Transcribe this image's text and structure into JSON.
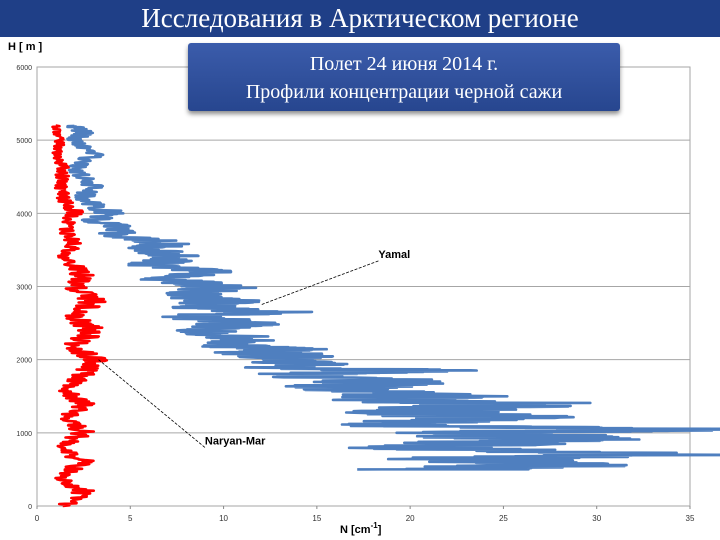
{
  "header": {
    "title": "Исследования в Арктическом регионе"
  },
  "callout": {
    "line1": "Полет 24 июня 2014 г.",
    "line2": "Профили концентрации черной сажи"
  },
  "chart_data": {
    "type": "line",
    "ylabel": "H [ m ]",
    "xlabel_base": "N [cm",
    "xlabel_exp": "-1",
    "xlabel_close": "]",
    "xlim": [
      0,
      35
    ],
    "ylim": [
      0,
      6000
    ],
    "x_ticks": [
      "0",
      "5",
      "10",
      "15",
      "20",
      "25",
      "30",
      "35"
    ],
    "y_ticks": [
      "0",
      "1000",
      "2000",
      "3000",
      "4000",
      "5000",
      "6000"
    ],
    "grid": "horizontal",
    "colors": {
      "Yamal": "#4f7fbf",
      "Naryan-Mar": "#ff0000"
    },
    "series": [
      {
        "name": "Yamal",
        "points": [
          [
            22,
            500
          ],
          [
            27,
            550
          ],
          [
            23,
            650
          ],
          [
            32,
            700
          ],
          [
            20,
            800
          ],
          [
            28,
            900
          ],
          [
            24,
            1000
          ],
          [
            33,
            1050
          ],
          [
            18,
            1100
          ],
          [
            25,
            1200
          ],
          [
            20,
            1300
          ],
          [
            26,
            1400
          ],
          [
            17,
            1450
          ],
          [
            21,
            1500
          ],
          [
            16,
            1600
          ],
          [
            19,
            1700
          ],
          [
            14,
            1800
          ],
          [
            20,
            1850
          ],
          [
            13,
            1900
          ],
          [
            15,
            2000
          ],
          [
            12,
            2100
          ],
          [
            13,
            2150
          ],
          [
            10,
            2200
          ],
          [
            11,
            2300
          ],
          [
            9,
            2400
          ],
          [
            11,
            2500
          ],
          [
            8,
            2600
          ],
          [
            13,
            2650
          ],
          [
            9,
            2700
          ],
          [
            10,
            2800
          ],
          [
            8,
            2900
          ],
          [
            10,
            3000
          ],
          [
            7,
            3100
          ],
          [
            9,
            3200
          ],
          [
            6,
            3300
          ],
          [
            8,
            3400
          ],
          [
            6,
            3500
          ],
          [
            7,
            3600
          ],
          [
            4,
            3700
          ],
          [
            5,
            3800
          ],
          [
            3,
            3900
          ],
          [
            4,
            4000
          ],
          [
            2.5,
            4200
          ],
          [
            3,
            4400
          ],
          [
            2,
            4600
          ],
          [
            3,
            4800
          ],
          [
            2,
            5000
          ],
          [
            2.5,
            5100
          ],
          [
            2,
            5200
          ]
        ]
      },
      {
        "name": "Naryan-Mar",
        "points": [
          [
            1.5,
            0
          ],
          [
            2.5,
            200
          ],
          [
            1.2,
            400
          ],
          [
            2.5,
            600
          ],
          [
            1.3,
            800
          ],
          [
            2.5,
            1000
          ],
          [
            1.5,
            1200
          ],
          [
            2.5,
            1400
          ],
          [
            1.5,
            1600
          ],
          [
            2.5,
            1800
          ],
          [
            3,
            2000
          ],
          [
            2,
            2200
          ],
          [
            3,
            2400
          ],
          [
            2,
            2600
          ],
          [
            3,
            2800
          ],
          [
            2,
            3000
          ],
          [
            2.5,
            3200
          ],
          [
            1.5,
            3400
          ],
          [
            2,
            3600
          ],
          [
            1.5,
            3800
          ],
          [
            2,
            4000
          ],
          [
            1.5,
            4200
          ],
          [
            1.2,
            4400
          ],
          [
            1.5,
            4600
          ],
          [
            1,
            4800
          ],
          [
            1.2,
            5000
          ],
          [
            1,
            5200
          ]
        ]
      }
    ],
    "annotations": [
      {
        "text": "Yamal",
        "x": 12,
        "y": 2750,
        "label_x": 18.3,
        "label_y": 3350
      },
      {
        "text": "Naryan-Mar",
        "x": 3.3,
        "y": 2000,
        "label_x": 9,
        "label_y": 800
      }
    ]
  }
}
